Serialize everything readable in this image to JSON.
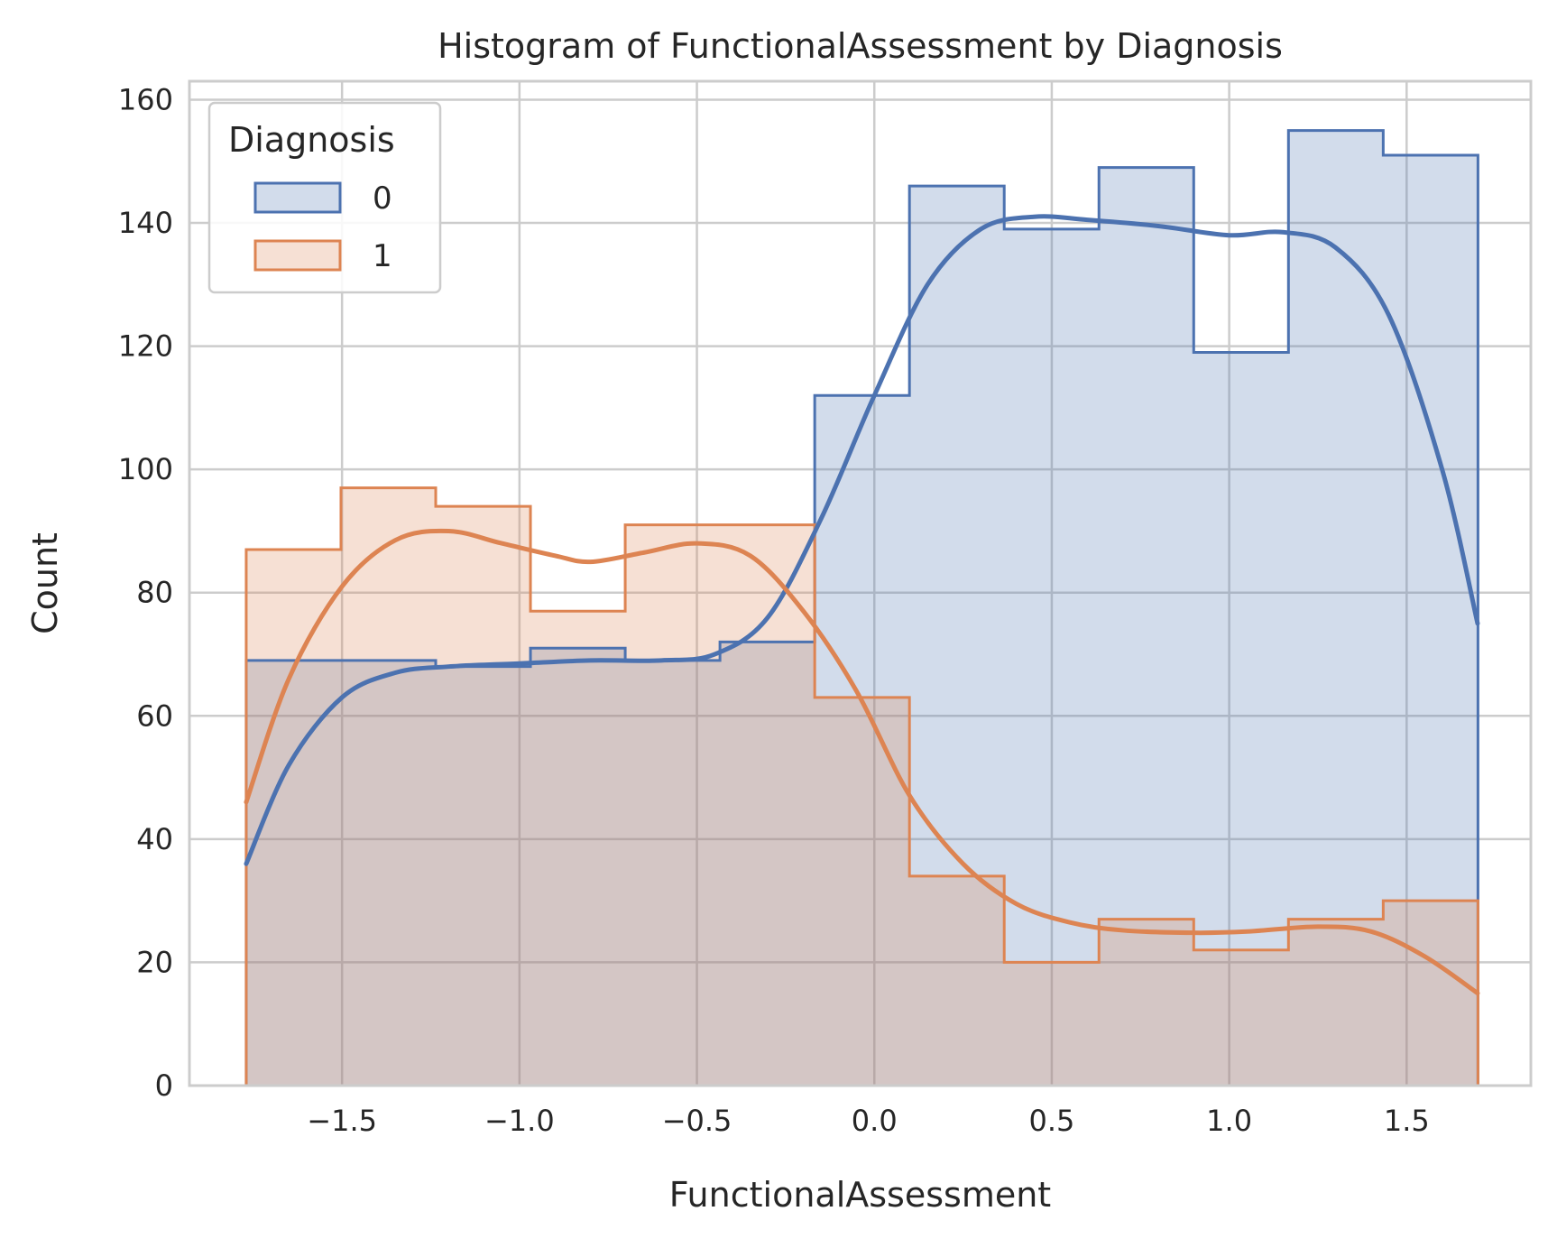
{
  "chart_data": {
    "type": "histogram",
    "title": "Histogram of FunctionalAssessment by Diagnosis",
    "xlabel": "FunctionalAssessment",
    "ylabel": "Count",
    "xlim": [
      -1.93,
      1.85
    ],
    "ylim": [
      0,
      163
    ],
    "x_ticks": [
      {
        "value": -1.5,
        "label": "−1.5"
      },
      {
        "value": -1.0,
        "label": "−1.0"
      },
      {
        "value": -0.5,
        "label": "−0.5"
      },
      {
        "value": 0.0,
        "label": "0.0"
      },
      {
        "value": 0.5,
        "label": "0.5"
      },
      {
        "value": 1.0,
        "label": "1.0"
      },
      {
        "value": 1.5,
        "label": "1.5"
      }
    ],
    "y_ticks": [
      {
        "value": 0,
        "label": "0"
      },
      {
        "value": 20,
        "label": "20"
      },
      {
        "value": 40,
        "label": "40"
      },
      {
        "value": 60,
        "label": "60"
      },
      {
        "value": 80,
        "label": "80"
      },
      {
        "value": 100,
        "label": "100"
      },
      {
        "value": 120,
        "label": "120"
      },
      {
        "value": 140,
        "label": "140"
      },
      {
        "value": 160,
        "label": "160"
      }
    ],
    "grid": true,
    "legend": {
      "title": "Diagnosis",
      "position": "top-left"
    },
    "bin_edges": [
      -1.77,
      -1.503,
      -1.236,
      -0.969,
      -0.702,
      -0.435,
      -0.168,
      0.099,
      0.366,
      0.633,
      0.9,
      1.167,
      1.434,
      1.701
    ],
    "series": [
      {
        "name": "0",
        "color": "#4c72b0",
        "counts": [
          69,
          69,
          68,
          71,
          69,
          72,
          112,
          146,
          139,
          149,
          119,
          155,
          151
        ],
        "kde": [
          [
            -1.77,
            36
          ],
          [
            -1.65,
            52
          ],
          [
            -1.5,
            63
          ],
          [
            -1.35,
            67
          ],
          [
            -1.2,
            68
          ],
          [
            -1.0,
            68.5
          ],
          [
            -0.8,
            69
          ],
          [
            -0.6,
            69
          ],
          [
            -0.45,
            70
          ],
          [
            -0.3,
            76
          ],
          [
            -0.15,
            92
          ],
          [
            0.0,
            112
          ],
          [
            0.15,
            130
          ],
          [
            0.3,
            139
          ],
          [
            0.45,
            141
          ],
          [
            0.6,
            140.5
          ],
          [
            0.8,
            139.5
          ],
          [
            1.0,
            138
          ],
          [
            1.15,
            138.5
          ],
          [
            1.3,
            136
          ],
          [
            1.45,
            125
          ],
          [
            1.6,
            100
          ],
          [
            1.7,
            75
          ]
        ]
      },
      {
        "name": "1",
        "color": "#dd8452",
        "counts": [
          87,
          97,
          94,
          77,
          91,
          91,
          63,
          34,
          20,
          27,
          22,
          27,
          30
        ],
        "kde": [
          [
            -1.77,
            46
          ],
          [
            -1.65,
            66
          ],
          [
            -1.5,
            81
          ],
          [
            -1.35,
            88.5
          ],
          [
            -1.2,
            90
          ],
          [
            -1.05,
            88
          ],
          [
            -0.9,
            86
          ],
          [
            -0.8,
            85
          ],
          [
            -0.65,
            86.5
          ],
          [
            -0.5,
            88
          ],
          [
            -0.35,
            86
          ],
          [
            -0.2,
            77
          ],
          [
            -0.05,
            64
          ],
          [
            0.1,
            47
          ],
          [
            0.25,
            36
          ],
          [
            0.4,
            29.5
          ],
          [
            0.55,
            26.5
          ],
          [
            0.7,
            25.2
          ],
          [
            0.9,
            24.8
          ],
          [
            1.05,
            25
          ],
          [
            1.25,
            25.8
          ],
          [
            1.4,
            25
          ],
          [
            1.55,
            21
          ],
          [
            1.7,
            15
          ]
        ]
      }
    ]
  }
}
